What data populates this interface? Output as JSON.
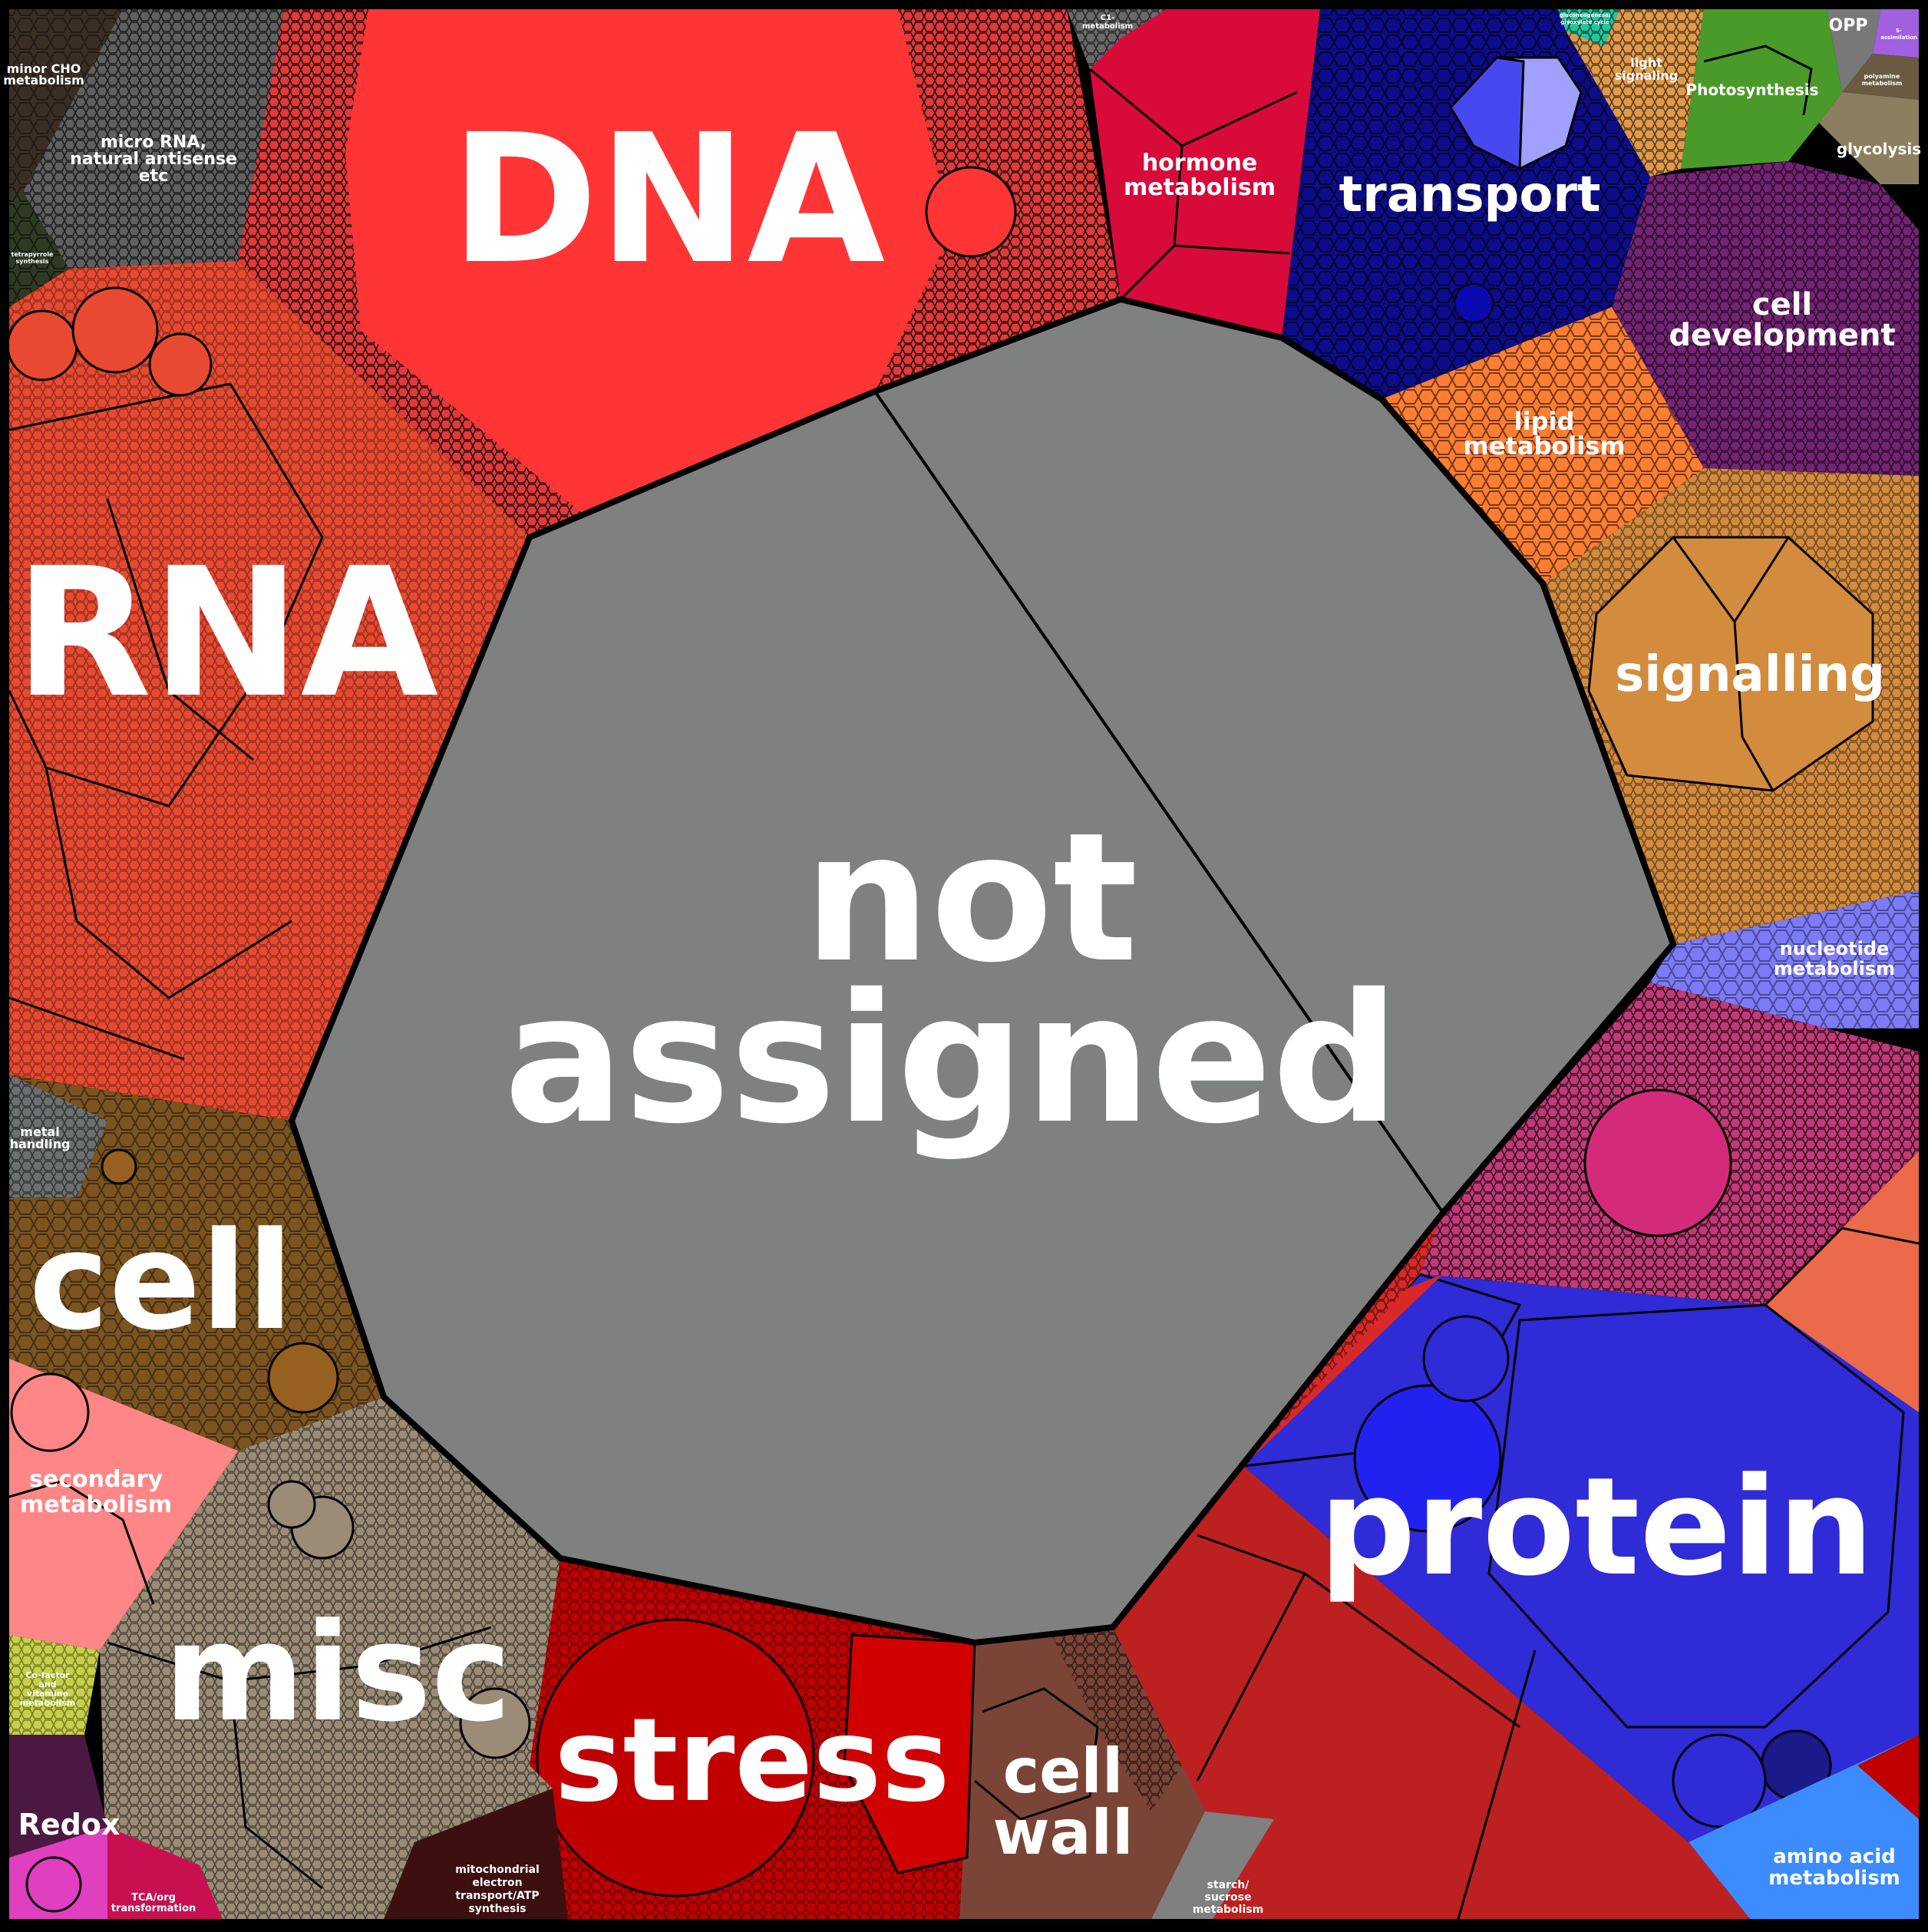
{
  "title": "",
  "categories": [
    {
      "key": "not_assigned",
      "label_lines": [
        "not",
        "assigned"
      ],
      "color": "#7f8080"
    },
    {
      "key": "dna",
      "label_lines": [
        "DNA"
      ],
      "color": "#ff3535"
    },
    {
      "key": "rna",
      "label_lines": [
        "RNA"
      ],
      "color": "#e84a31"
    },
    {
      "key": "protein",
      "label_lines": [
        "protein"
      ],
      "color": "#2f2bd6"
    },
    {
      "key": "signalling",
      "label_lines": [
        "signalling"
      ],
      "color": "#d38b3e"
    },
    {
      "key": "cell",
      "label_lines": [
        "cell"
      ],
      "color": "#7b5420"
    },
    {
      "key": "misc",
      "label_lines": [
        "misc"
      ],
      "color": "#9a8c76"
    },
    {
      "key": "stress",
      "label_lines": [
        "stress"
      ],
      "color": "#c00000"
    },
    {
      "key": "transport",
      "label_lines": [
        "transport"
      ],
      "color": "#0c0c8c"
    },
    {
      "key": "cell_development",
      "label_lines": [
        "cell",
        "development"
      ],
      "color": "#732474"
    },
    {
      "key": "hormone_metabolism",
      "label_lines": [
        "hormone",
        "metabolism"
      ],
      "color": "#d70a3a"
    },
    {
      "key": "lipid_metabolism",
      "label_lines": [
        "lipid",
        "metabolism"
      ],
      "color": "#ff7e33"
    },
    {
      "key": "cell_wall",
      "label_lines": [
        "cell",
        "wall"
      ],
      "color": "#7a4536"
    },
    {
      "key": "secondary_metabolism",
      "label_lines": [
        "secondary",
        "metabolism"
      ],
      "color": "#ff8686"
    },
    {
      "key": "amino_acid_metabolism",
      "label_lines": [
        "amino acid",
        "metabolism"
      ],
      "color": "#3d8cff"
    },
    {
      "key": "nucleotide_metabolism",
      "label_lines": [
        "nucleotide",
        "metabolism"
      ],
      "color": "#7c7cf8"
    },
    {
      "key": "redox",
      "label_lines": [
        "Redox"
      ],
      "color": "#4a1840"
    },
    {
      "key": "micro_rna",
      "label_lines": [
        "micro RNA,",
        "natural antisense",
        "etc"
      ],
      "color": "#606060"
    },
    {
      "key": "minor_cho",
      "label_lines": [
        "minor CHO",
        "metabolism"
      ],
      "color": "#3a2e24"
    },
    {
      "key": "photosynthesis",
      "label_lines": [
        "Photosynthesis"
      ],
      "color": "#4a9a2a"
    },
    {
      "key": "glycolysis",
      "label_lines": [
        "glycolysis"
      ],
      "color": "#8c7f60"
    },
    {
      "key": "opp",
      "label_lines": [
        "OPP"
      ],
      "color": "#787878"
    },
    {
      "key": "light_signaling",
      "label_lines": [
        "light",
        "signaling"
      ],
      "color": "#e09a4a"
    },
    {
      "key": "metal_handling",
      "label_lines": [
        "metal",
        "handling"
      ],
      "color": "#6c7070"
    },
    {
      "key": "cofactor",
      "label_lines": [
        "Co-factor",
        "and",
        "vitamine",
        "metabolism"
      ],
      "color": "#c8d048"
    },
    {
      "key": "mito_etc",
      "label_lines": [
        "mitochondrial",
        "electron",
        "transport/ATP",
        "synthesis"
      ],
      "color": "#3c1010"
    },
    {
      "key": "tca",
      "label_lines": [
        "TCA/org",
        "transformation"
      ],
      "color": "#c81050"
    },
    {
      "key": "starch",
      "label_lines": [
        "starch/",
        "sucrose",
        "metabolism"
      ],
      "color": "#808080"
    },
    {
      "key": "tetrapyrrole",
      "label_lines": [
        "tetrapyrrole",
        "synthesis"
      ],
      "color": "#2f3a22"
    },
    {
      "key": "c1",
      "label_lines": [
        "C1-",
        "metabolism"
      ],
      "color": "#6a6a6a"
    },
    {
      "key": "polyamine",
      "label_lines": [
        "polyamine",
        "metabolism"
      ],
      "color": "#6a5a40"
    },
    {
      "key": "s_assim",
      "label_lines": [
        "S-",
        "assimilation"
      ],
      "color": "#a060e0"
    },
    {
      "key": "gluconeo",
      "label_lines": [
        "gluconeogenese/",
        "glyoxylate cycle"
      ],
      "color": "#20c8a0"
    }
  ]
}
